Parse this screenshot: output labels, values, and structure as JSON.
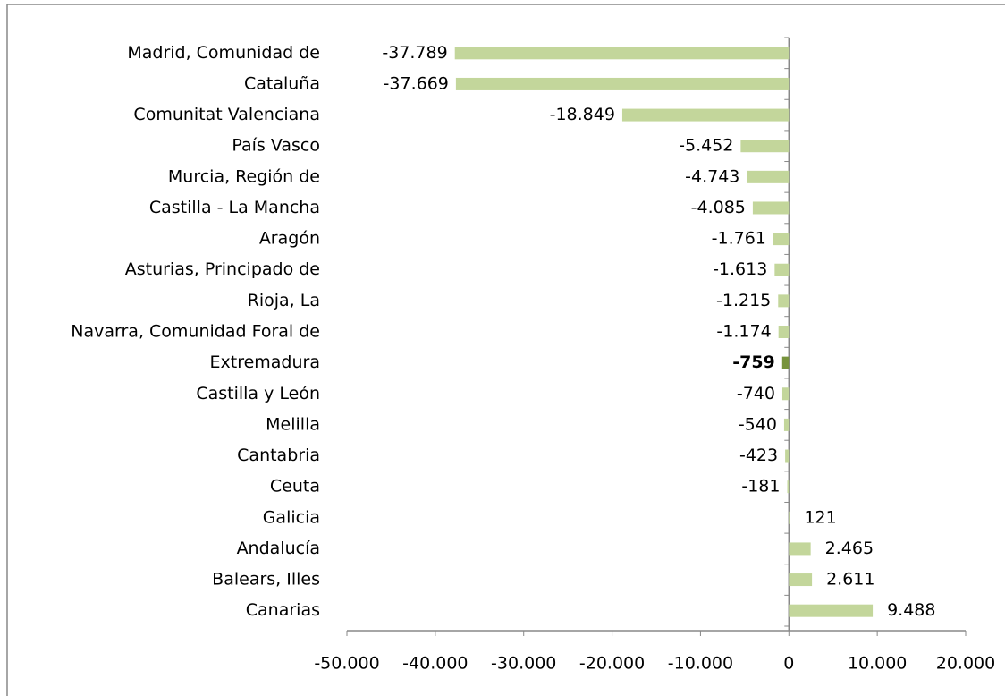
{
  "chart_data": {
    "type": "barh",
    "categories": [
      "Madrid, Comunidad de",
      "Cataluña",
      "Comunitat Valenciana",
      "País Vasco",
      "Murcia, Región de",
      "Castilla - La Mancha",
      "Aragón",
      "Asturias, Principado de",
      "Rioja, La",
      "Navarra, Comunidad Foral de",
      "Extremadura",
      "Castilla y León",
      "Melilla",
      "Cantabria",
      "Ceuta",
      "Galicia",
      "Andalucía",
      "Balears, Illes",
      "Canarias"
    ],
    "values": [
      -37789,
      -37669,
      -18849,
      -5452,
      -4743,
      -4085,
      -1761,
      -1613,
      -1215,
      -1174,
      -759,
      -740,
      -540,
      -423,
      -181,
      121,
      2465,
      2611,
      9488
    ],
    "value_labels": [
      "-37.789",
      "-37.669",
      "-18.849",
      "-5.452",
      "-4.743",
      "-4.085",
      "-1.761",
      "-1.613",
      "-1.215",
      "-1.174",
      "-759",
      "-740",
      "-540",
      "-423",
      "-181",
      "121",
      "2.465",
      "2.611",
      "9.488"
    ],
    "color": "#c3d69b",
    "highlight": {
      "index": 10,
      "color": "#77933c"
    },
    "xlim": [
      -50000,
      20000
    ],
    "xticks": [
      {
        "value": -50000,
        "label": "-50.000"
      },
      {
        "value": -40000,
        "label": "-40.000"
      },
      {
        "value": -30000,
        "label": "-30.000"
      },
      {
        "value": -20000,
        "label": "-20.000"
      },
      {
        "value": -10000,
        "label": "-10.000"
      },
      0,
      {
        "value": 10000,
        "label": "10.000"
      },
      {
        "value": 20000,
        "label": "20.000"
      }
    ]
  }
}
